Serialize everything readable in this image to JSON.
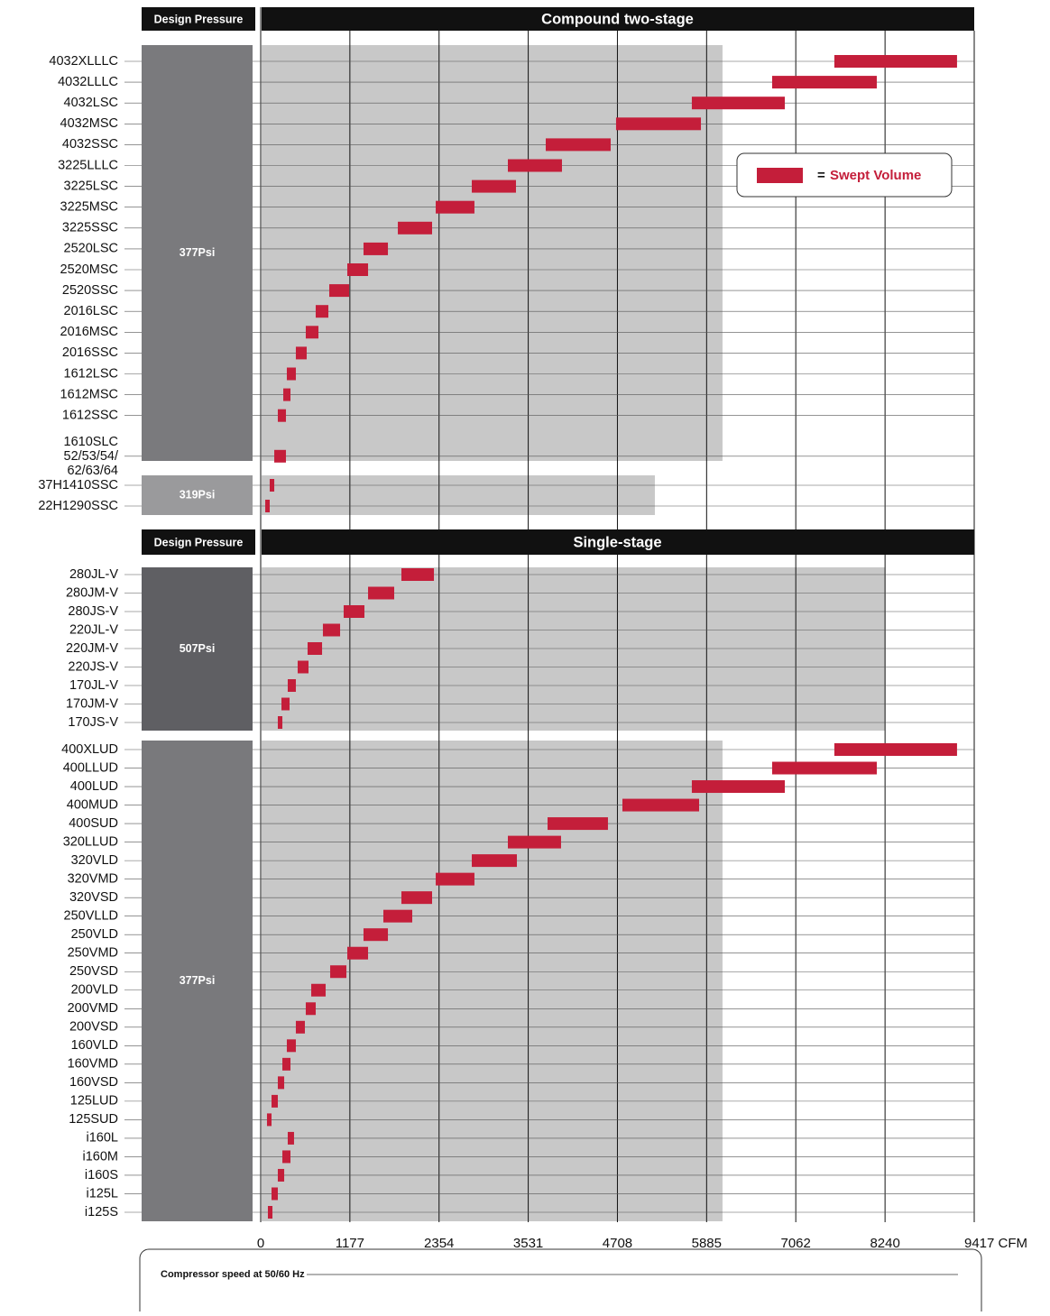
{
  "chart_data": {
    "type": "range-bar",
    "xlim": [
      0,
      9417
    ],
    "xticks": [
      0,
      1177,
      2354,
      3531,
      4708,
      5885,
      7062,
      8240,
      {
        "value": 9417,
        "label": "9417 CFM"
      }
    ],
    "grid": true,
    "color": "#c41e3a",
    "legend": {
      "symbol": "=",
      "label": "Swept Volume"
    },
    "footer": "Compressor speed at 50/60 Hz",
    "sections": [
      {
        "pressure_header": "Design Pressure",
        "title": "Compound two-stage",
        "groups": [
          {
            "pressure": "377Psi",
            "box_color": "#7a7a7d",
            "shade_max": 6095,
            "categories": [
              "4032XLLLC",
              "4032LLLC",
              "4032LSC",
              "4032MSC",
              "4032SSC",
              "3225LLLC",
              "3225LSC",
              "3225MSC",
              "3225SSC",
              "2520LSC",
              "2520MSC",
              "2520SSC",
              "2016LSC",
              "2016MSC",
              "2016SSC",
              "1612LSC",
              "1612MSC",
              "1612SSC",
              "1610SLC\n52/53/54/\n62/63/64"
            ],
            "low": [
              7571,
              6750,
              5690,
              4690,
              3762,
              3262,
              2786,
              2310,
              1810,
              1357,
              1143,
              905,
              726,
              595,
              464,
              345,
              298,
              226,
              179
            ],
            "high": [
              9190,
              8131,
              6917,
              5810,
              4619,
              3976,
              3369,
              2821,
              2262,
              1679,
              1417,
              1167,
              893,
              762,
              607,
              464,
              393,
              333,
              333
            ]
          },
          {
            "pressure": "319Psi",
            "box_color": "#9a9a9c",
            "shade_max": 5202,
            "categories": [
              "37H1410SSC",
              "22H1290SSC"
            ],
            "low": [
              119,
              60
            ],
            "high": [
              179,
              119
            ]
          }
        ]
      },
      {
        "pressure_header": "Design Pressure",
        "title": "Single-stage",
        "groups": [
          {
            "pressure": "507Psi",
            "box_color": "#5f5f63",
            "shade_max": 8240,
            "categories": [
              "280JL-V",
              "280JM-V",
              "280JS-V",
              "220JL-V",
              "220JM-V",
              "220JS-V",
              "170JL-V",
              "170JM-V",
              "170JS-V"
            ],
            "low": [
              1857,
              1417,
              1095,
              821,
              619,
              488,
              357,
              274,
              226
            ],
            "high": [
              2286,
              1762,
              1369,
              1048,
              810,
              631,
              464,
              381,
              286
            ]
          },
          {
            "pressure": "377Psi",
            "box_color": "#79797c",
            "shade_max": 6095,
            "categories": [
              "400XLUD",
              "400LLUD",
              "400LUD",
              "400MUD",
              "400SUD",
              "320LLUD",
              "320VLD",
              "320VMD",
              "320VSD",
              "250VLLD",
              "250VLD",
              "250VMD",
              "250VSD",
              "200VLD",
              "200VMD",
              "200VSD",
              "160VLD",
              "160VMD",
              "160VSD",
              "125LUD",
              "125SUD",
              "i160L",
              "i160M",
              "i160S",
              "i125L",
              "i125S"
            ],
            "low": [
              7571,
              6750,
              5690,
              4774,
              3786,
              3262,
              2786,
              2310,
              1857,
              1619,
              1357,
              1143,
              917,
              667,
              595,
              464,
              345,
              286,
              226,
              143,
              83,
              357,
              286,
              226,
              143,
              95
            ],
            "high": [
              9190,
              8131,
              6917,
              5786,
              4583,
              3964,
              3381,
              2821,
              2262,
              2000,
              1679,
              1417,
              1131,
              857,
              726,
              583,
              464,
              393,
              310,
              226,
              143,
              440,
              393,
              310,
              226,
              155
            ]
          }
        ]
      }
    ]
  }
}
